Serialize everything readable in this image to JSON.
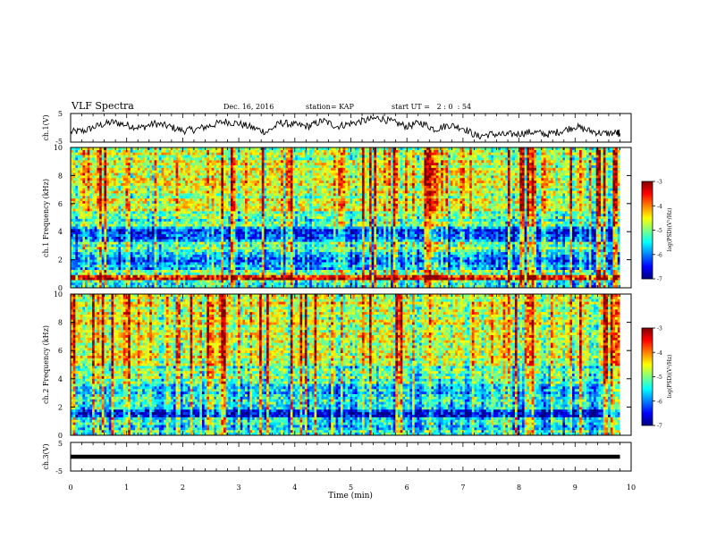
{
  "header": {
    "title": "VLF Spectra",
    "date": "Dec. 16, 2016",
    "station": "station= KAP",
    "start_ut": "start UT =   2 : 0  : 54"
  },
  "chart_data": [
    {
      "type": "line",
      "panel": "ch1-waveform",
      "ylabel": "ch.1(V)",
      "ylim": [
        -5,
        5
      ],
      "yticks": [
        "5",
        "-5"
      ],
      "xlim": [
        0,
        10
      ],
      "x": [
        0,
        0.25,
        0.5,
        0.75,
        1,
        1.25,
        1.5,
        1.75,
        2,
        2.25,
        2.5,
        2.75,
        3,
        3.25,
        3.5,
        3.75,
        4,
        4.25,
        4.5,
        4.75,
        5,
        5.25,
        5.5,
        5.75,
        6,
        6.25,
        6.5,
        6.75,
        7,
        7.25,
        7.5,
        7.75,
        8,
        8.25,
        8.5,
        8.75,
        9,
        9.25,
        9.5,
        9.75,
        9.8
      ],
      "values": [
        -1.5,
        -1.0,
        0.8,
        2.0,
        1.0,
        0.0,
        1.5,
        0.5,
        -1.0,
        -0.5,
        0.8,
        2.2,
        1.5,
        0.0,
        -1.5,
        1.8,
        1.0,
        0.5,
        2.5,
        0.5,
        1.5,
        2.5,
        3.5,
        2.0,
        0.5,
        1.8,
        -0.5,
        1.0,
        0.0,
        -3.0,
        -2.2,
        -2.5,
        -2.0,
        -1.5,
        -2.3,
        -1.2,
        0.5,
        -1.0,
        -2.0,
        -1.8,
        -2.0
      ]
    },
    {
      "type": "heatmap",
      "panel": "ch1-spectrogram",
      "ylabel": "ch.1 Frequency (kHz)",
      "ylim": [
        0,
        10
      ],
      "yticks": [
        "0",
        "2",
        "4",
        "6",
        "8",
        "10"
      ],
      "xlim": [
        0,
        10
      ],
      "colorbar": {
        "label": "log(PSD)(V²/Hz)",
        "range": [
          -7,
          -3
        ],
        "ticks": [
          "-3",
          "-4",
          "-5",
          "-6",
          "-7"
        ]
      },
      "band_levels_by_khz": [
        {
          "from": 0.0,
          "to": 0.5,
          "level": -5.4
        },
        {
          "from": 0.5,
          "to": 1.0,
          "level": -3.6
        },
        {
          "from": 1.0,
          "to": 1.3,
          "level": -5.0
        },
        {
          "from": 1.3,
          "to": 2.6,
          "level": -5.9
        },
        {
          "from": 2.6,
          "to": 3.3,
          "level": -5.2
        },
        {
          "from": 3.3,
          "to": 4.3,
          "level": -6.1
        },
        {
          "from": 4.3,
          "to": 5.5,
          "level": -5.2
        },
        {
          "from": 5.5,
          "to": 10.0,
          "level": -4.7
        }
      ]
    },
    {
      "type": "heatmap",
      "panel": "ch2-spectrogram",
      "ylabel": "ch.2 Frequency (kHz)",
      "ylim": [
        0,
        10
      ],
      "yticks": [
        "0",
        "2",
        "4",
        "6",
        "8",
        "10"
      ],
      "xlim": [
        0,
        10
      ],
      "colorbar": {
        "label": "log(PSD)(V²/Hz)",
        "range": [
          -7,
          -3
        ],
        "ticks": [
          "-3",
          "-4",
          "-5",
          "-6",
          "-7"
        ]
      },
      "band_levels_by_khz": [
        {
          "from": 0.0,
          "to": 0.5,
          "level": -5.3
        },
        {
          "from": 0.5,
          "to": 1.2,
          "level": -5.6
        },
        {
          "from": 1.2,
          "to": 1.9,
          "level": -6.4
        },
        {
          "from": 1.9,
          "to": 3.6,
          "level": -5.6
        },
        {
          "from": 3.6,
          "to": 5.0,
          "level": -5.0
        },
        {
          "from": 5.0,
          "to": 10.0,
          "level": -4.6
        }
      ]
    },
    {
      "type": "line",
      "panel": "ch3-waveform",
      "ylabel": "ch.3(V)",
      "ylim": [
        -5,
        5
      ],
      "yticks": [
        "5",
        "-5"
      ],
      "xlim": [
        0,
        10
      ],
      "x": [
        0,
        9.8
      ],
      "values": [
        0,
        0
      ]
    }
  ],
  "xaxis": {
    "label": "Time (min)",
    "ticks": [
      "0",
      "1",
      "2",
      "3",
      "4",
      "5",
      "6",
      "7",
      "8",
      "9",
      "10"
    ]
  },
  "colors": {
    "colormap": [
      "#00007f",
      "#0000ff",
      "#0080ff",
      "#00ffff",
      "#80ff80",
      "#ffff00",
      "#ff8000",
      "#ff0000",
      "#7f0000"
    ],
    "trace": "#000000"
  }
}
